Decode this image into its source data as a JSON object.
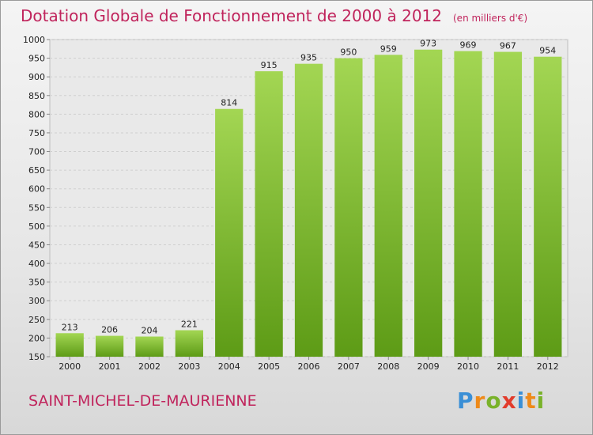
{
  "title": "Dotation Globale de Fonctionnement de 2000 à 2012",
  "unit": "(en milliers d'€)",
  "city": "SAINT-MICHEL-DE-MAURIENNE",
  "logo": [
    "P",
    "r",
    "o",
    "x",
    "i",
    "t",
    "i"
  ],
  "colors": {
    "title": "#c0245c",
    "bar_light": "#9ccf4a",
    "bar_dark": "#5d9b16"
  },
  "chart_data": {
    "type": "bar",
    "categories": [
      "2000",
      "2001",
      "2002",
      "2003",
      "2004",
      "2005",
      "2006",
      "2007",
      "2008",
      "2009",
      "2010",
      "2011",
      "2012"
    ],
    "values": [
      213,
      206,
      204,
      221,
      814,
      915,
      935,
      950,
      959,
      973,
      969,
      967,
      954
    ],
    "title": "Dotation Globale de Fonctionnement de 2000 à 2012",
    "ylim": [
      150,
      1000
    ],
    "yticks": [
      150,
      200,
      250,
      300,
      350,
      400,
      450,
      500,
      550,
      600,
      650,
      700,
      750,
      800,
      850,
      900,
      950,
      1000
    ],
    "grid": true
  }
}
